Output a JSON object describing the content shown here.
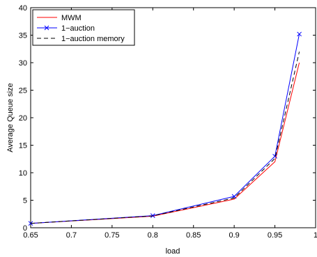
{
  "chart_data": {
    "type": "line",
    "title": "",
    "xlabel": "load",
    "ylabel": "Average Queue size",
    "xlim": [
      0.65,
      1
    ],
    "ylim": [
      0,
      40
    ],
    "xticks": [
      0.65,
      0.7,
      0.75,
      0.8,
      0.85,
      0.9,
      0.95,
      1
    ],
    "xtick_labels": [
      "0.65",
      "0.7",
      "0.75",
      "0.8",
      "0.85",
      "0.9",
      "0.95",
      "1"
    ],
    "yticks": [
      0,
      5,
      10,
      15,
      20,
      25,
      30,
      35,
      40
    ],
    "ytick_labels": [
      "0",
      "5",
      "10",
      "15",
      "20",
      "25",
      "30",
      "35",
      "40"
    ],
    "grid": false,
    "legend_position": "top-left",
    "series": [
      {
        "name": "MWM",
        "color": "#ff0000",
        "style": "solid",
        "marker": "none",
        "x": [
          0.65,
          0.8,
          0.9,
          0.95,
          0.98
        ],
        "y": [
          0.8,
          2.1,
          5.2,
          12.0,
          30.0
        ]
      },
      {
        "name": "1−auction",
        "color": "#0000ff",
        "style": "solid",
        "marker": "x",
        "x": [
          0.65,
          0.8,
          0.9,
          0.95,
          0.98
        ],
        "y": [
          0.8,
          2.2,
          5.7,
          13.0,
          35.2
        ]
      },
      {
        "name": "1−auction memory",
        "color": "#000000",
        "style": "dashed",
        "marker": "none",
        "x": [
          0.65,
          0.8,
          0.9,
          0.95,
          0.98
        ],
        "y": [
          0.8,
          2.15,
          5.4,
          12.6,
          32.0
        ]
      }
    ]
  }
}
